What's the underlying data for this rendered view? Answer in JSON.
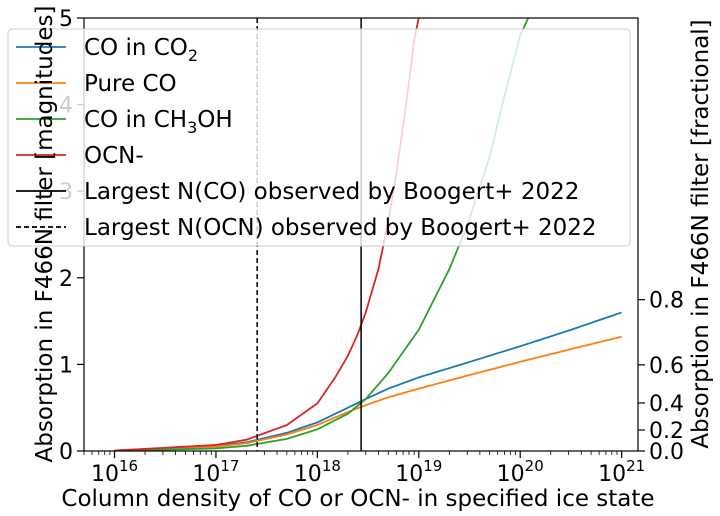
{
  "chart_data": {
    "type": "line",
    "xlabel": "Column density of CO or OCN- in specified ice state",
    "ylabel": "Absorption in F466N filter [magnitudes]",
    "y2label": "Absorption in F466N filter [fractional]",
    "xscale": "log",
    "xlim": [
      5000000000000000.0,
      1.45e+21
    ],
    "ylim": [
      0,
      5
    ],
    "x_ticks": [
      {
        "value": 1e+16,
        "base": "10",
        "exp": "16"
      },
      {
        "value": 1e+17,
        "base": "10",
        "exp": "17"
      },
      {
        "value": 1e+18,
        "base": "10",
        "exp": "18"
      },
      {
        "value": 1e+19,
        "base": "10",
        "exp": "19"
      },
      {
        "value": 1e+20,
        "base": "10",
        "exp": "20"
      },
      {
        "value": 1e+21,
        "base": "10",
        "exp": "21"
      }
    ],
    "y_ticks": [
      0,
      1,
      2,
      3,
      4,
      5
    ],
    "y2_ticks": [
      0.0,
      0.2,
      0.4,
      0.6,
      0.8
    ],
    "y2_tick_labels": [
      "0.0",
      "0.2",
      "0.4",
      "0.6",
      "0.8"
    ],
    "legend_position": "top-left",
    "grid": false,
    "series": [
      {
        "name": "CO in CO₂",
        "name_base": "CO in CO",
        "name_sub": "2",
        "name_tail": "",
        "color": "#1f77b4",
        "x": [
          1e+16,
          1e+17,
          2e+17,
          5e+17,
          1e+18,
          2e+18,
          3e+18,
          5e+18,
          1e+19,
          3e+19,
          1e+20,
          3e+20,
          1e+21
        ],
        "y": [
          0.005,
          0.06,
          0.1,
          0.21,
          0.33,
          0.5,
          0.6,
          0.72,
          0.85,
          1.02,
          1.21,
          1.39,
          1.6
        ]
      },
      {
        "name": "Pure CO",
        "name_base": "Pure CO",
        "name_sub": "",
        "name_tail": "",
        "color": "#ff7f0e",
        "x": [
          1e+16,
          1e+17,
          2e+17,
          5e+17,
          1e+18,
          2e+18,
          3e+18,
          5e+18,
          1e+19,
          3e+19,
          1e+20,
          3e+20,
          1e+21
        ],
        "y": [
          0.005,
          0.05,
          0.09,
          0.19,
          0.3,
          0.45,
          0.53,
          0.62,
          0.72,
          0.87,
          1.03,
          1.17,
          1.32
        ]
      },
      {
        "name": "CO in CH₃OH",
        "name_base": "CO in CH",
        "name_sub": "3",
        "name_tail": "OH",
        "color": "#2ca02c",
        "x": [
          1e+16,
          1e+17,
          2e+17,
          5e+17,
          1e+18,
          2e+18,
          3e+18,
          5e+18,
          1e+19,
          2e+19,
          3e+19,
          5e+19,
          7e+19,
          1e+20,
          1.2e+20
        ],
        "y": [
          0.002,
          0.03,
          0.06,
          0.14,
          0.25,
          0.43,
          0.6,
          0.9,
          1.4,
          2.1,
          2.6,
          3.4,
          4.1,
          4.8,
          5.0
        ]
      },
      {
        "name": "OCN-",
        "name_base": "OCN-",
        "name_sub": "",
        "name_tail": "",
        "color": "#d62728",
        "x": [
          1e+16,
          1e+17,
          2e+17,
          5e+17,
          1e+18,
          1.5e+18,
          2e+18,
          2.5e+18,
          3e+18,
          4e+18,
          5e+18,
          6e+18,
          7e+18,
          8e+18,
          9e+18,
          1e+19
        ],
        "y": [
          0.005,
          0.07,
          0.13,
          0.3,
          0.55,
          0.85,
          1.1,
          1.35,
          1.6,
          2.1,
          2.65,
          3.2,
          3.75,
          4.25,
          4.75,
          5.0
        ]
      }
    ],
    "vlines": [
      {
        "name": "Largest N(CO) observed by Boogert+ 2022",
        "x": 2.7e+18,
        "style": "solid",
        "color": "#000000"
      },
      {
        "name": "Largest N(OCN) observed by Boogert+ 2022",
        "x": 2.55e+17,
        "style": "dashed",
        "color": "#000000"
      }
    ],
    "legend": [
      {
        "ref": "series",
        "index": 0
      },
      {
        "ref": "series",
        "index": 1
      },
      {
        "ref": "series",
        "index": 2
      },
      {
        "ref": "series",
        "index": 3
      },
      {
        "ref": "vlines",
        "index": 0
      },
      {
        "ref": "vlines",
        "index": 1
      }
    ]
  }
}
